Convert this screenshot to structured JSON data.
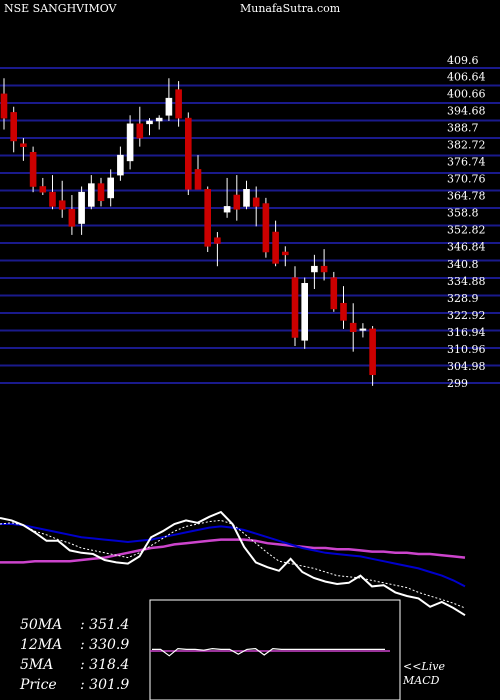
{
  "header": {
    "symbol": "NSE SANGHVIMOV",
    "site": "MunafaSutra.com"
  },
  "colors": {
    "background": "#000000",
    "grid": "#1a1a8c",
    "bull_candle": "#ffffff",
    "bear_candle": "#cc0000",
    "price_line": "#ffffff",
    "ma_short": "#ffffff",
    "ma_mid": "#0000cc",
    "ma_long": "#cc44cc"
  },
  "ma_values": [
    {
      "label": "50MA",
      "value": ": 351.4"
    },
    {
      "label": "12MA",
      "value": ": 330.9"
    },
    {
      "label": "5MA",
      "value": ": 318.4"
    },
    {
      "label": "Price",
      "value": ": 301.9"
    }
  ],
  "macd": {
    "live_label": "<<Live",
    "macd_label": "MACD"
  },
  "chart_data": {
    "type": "candlestick",
    "y_tick_labels": [
      "409.6",
      "406.64",
      "400.66",
      "394.68",
      "388.7",
      "382.72",
      "376.74",
      "370.76",
      "364.78",
      "358.8",
      "352.82",
      "346.84",
      "340.8",
      "334.88",
      "328.9",
      "322.92",
      "316.94",
      "310.96",
      "304.98",
      "299"
    ],
    "y_ticks": [
      409.6,
      406.64,
      400.66,
      394.68,
      388.7,
      382.72,
      376.74,
      370.76,
      364.78,
      358.8,
      352.82,
      346.84,
      340.8,
      334.88,
      328.9,
      322.92,
      316.94,
      310.96,
      304.98,
      299
    ],
    "ylim": [
      299,
      409.6
    ],
    "candles": [
      {
        "o": 400.5,
        "h": 406,
        "l": 388,
        "c": 392
      },
      {
        "o": 394,
        "h": 396,
        "l": 380,
        "c": 384
      },
      {
        "o": 383,
        "h": 385,
        "l": 377,
        "c": 382
      },
      {
        "o": 380,
        "h": 382,
        "l": 366,
        "c": 368
      },
      {
        "o": 368,
        "h": 371,
        "l": 365,
        "c": 366
      },
      {
        "o": 366,
        "h": 372,
        "l": 360,
        "c": 361
      },
      {
        "o": 363,
        "h": 370,
        "l": 357,
        "c": 360
      },
      {
        "o": 360,
        "h": 365,
        "l": 351,
        "c": 354
      },
      {
        "o": 355,
        "h": 368,
        "l": 351,
        "c": 366
      },
      {
        "o": 361,
        "h": 372,
        "l": 360,
        "c": 369
      },
      {
        "o": 369,
        "h": 371,
        "l": 361,
        "c": 363
      },
      {
        "o": 364,
        "h": 374,
        "l": 361,
        "c": 371
      },
      {
        "o": 372,
        "h": 382,
        "l": 370,
        "c": 379
      },
      {
        "o": 377,
        "h": 393,
        "l": 374,
        "c": 390
      },
      {
        "o": 390,
        "h": 396,
        "l": 382,
        "c": 385
      },
      {
        "o": 390,
        "h": 392,
        "l": 386,
        "c": 391
      },
      {
        "o": 391,
        "h": 393,
        "l": 388,
        "c": 392
      },
      {
        "o": 393,
        "h": 406,
        "l": 391,
        "c": 399
      },
      {
        "o": 402,
        "h": 405,
        "l": 389,
        "c": 392
      },
      {
        "o": 392,
        "h": 394,
        "l": 365,
        "c": 367
      },
      {
        "o": 374,
        "h": 379,
        "l": 368,
        "c": 367
      },
      {
        "o": 367,
        "h": 368,
        "l": 345,
        "c": 347
      },
      {
        "o": 350,
        "h": 352,
        "l": 340,
        "c": 348
      },
      {
        "o": 359,
        "h": 371,
        "l": 357,
        "c": 361
      },
      {
        "o": 365,
        "h": 372,
        "l": 356,
        "c": 360
      },
      {
        "o": 361,
        "h": 370,
        "l": 360,
        "c": 367
      },
      {
        "o": 364,
        "h": 368,
        "l": 354,
        "c": 361
      },
      {
        "o": 362,
        "h": 364,
        "l": 343,
        "c": 345
      },
      {
        "o": 352,
        "h": 356,
        "l": 340,
        "c": 341
      },
      {
        "o": 345,
        "h": 347,
        "l": 340,
        "c": 344
      },
      {
        "o": 336,
        "h": 340,
        "l": 312,
        "c": 315
      },
      {
        "o": 314,
        "h": 336,
        "l": 311,
        "c": 334
      },
      {
        "o": 338,
        "h": 344,
        "l": 332,
        "c": 340
      },
      {
        "o": 340,
        "h": 346,
        "l": 335,
        "c": 338
      },
      {
        "o": 336,
        "h": 338,
        "l": 324,
        "c": 325
      },
      {
        "o": 327,
        "h": 333,
        "l": 318,
        "c": 321
      },
      {
        "o": 320,
        "h": 327,
        "l": 310,
        "c": 317
      },
      {
        "o": 318,
        "h": 320,
        "l": 315,
        "c": 318
      },
      {
        "o": 318,
        "h": 319,
        "l": 298,
        "c": 301.9
      }
    ],
    "lower_panel": {
      "ylim": [
        0,
        100
      ],
      "price_line": [
        85,
        83,
        79,
        73,
        66,
        66,
        58,
        56,
        55,
        50,
        48,
        47,
        53,
        69,
        74,
        80,
        83,
        81,
        86,
        90,
        80,
        61,
        48,
        44,
        41,
        51,
        40,
        35,
        32,
        30,
        31,
        37,
        28,
        29,
        23,
        20,
        18,
        11,
        15,
        10,
        4
      ],
      "ma_short": [
        80,
        81,
        79,
        74,
        71,
        67,
        64,
        60,
        58,
        56,
        54,
        52,
        56,
        62,
        68,
        74,
        78,
        80,
        82,
        83,
        80,
        72,
        64,
        56,
        49,
        47,
        45,
        43,
        40,
        37,
        36,
        35,
        33,
        31,
        29,
        27,
        23,
        20,
        17,
        14,
        10
      ],
      "ma_mid": [
        80,
        80,
        79,
        77,
        75,
        73,
        71,
        69,
        68,
        67,
        66,
        65,
        66,
        67,
        69,
        71,
        73,
        75,
        77,
        78,
        77,
        75,
        72,
        69,
        66,
        63,
        60,
        58,
        56,
        55,
        54,
        53,
        51,
        49,
        47,
        45,
        43,
        40,
        37,
        33,
        28
      ],
      "ma_long": [
        48,
        48,
        48,
        49,
        49,
        49,
        49,
        50,
        51,
        52,
        54,
        56,
        58,
        60,
        61,
        63,
        64,
        65,
        66,
        67,
        67,
        67,
        66,
        64,
        63,
        62,
        61,
        60,
        60,
        59,
        59,
        58,
        57,
        57,
        56,
        56,
        55,
        55,
        54,
        53,
        52
      ]
    },
    "macd_panel": {
      "values": [
        0.2,
        0.2,
        -0.6,
        0.3,
        0.2,
        0.2,
        0.1,
        0.3,
        0.2,
        0.2,
        -0.4,
        0.2,
        0.3,
        -0.5,
        0.3,
        0.2,
        0.2,
        0.2,
        0.2,
        0.2,
        0.2,
        0.2,
        0.2,
        0.2,
        0.2,
        0.2,
        0.2,
        0.2
      ]
    }
  }
}
